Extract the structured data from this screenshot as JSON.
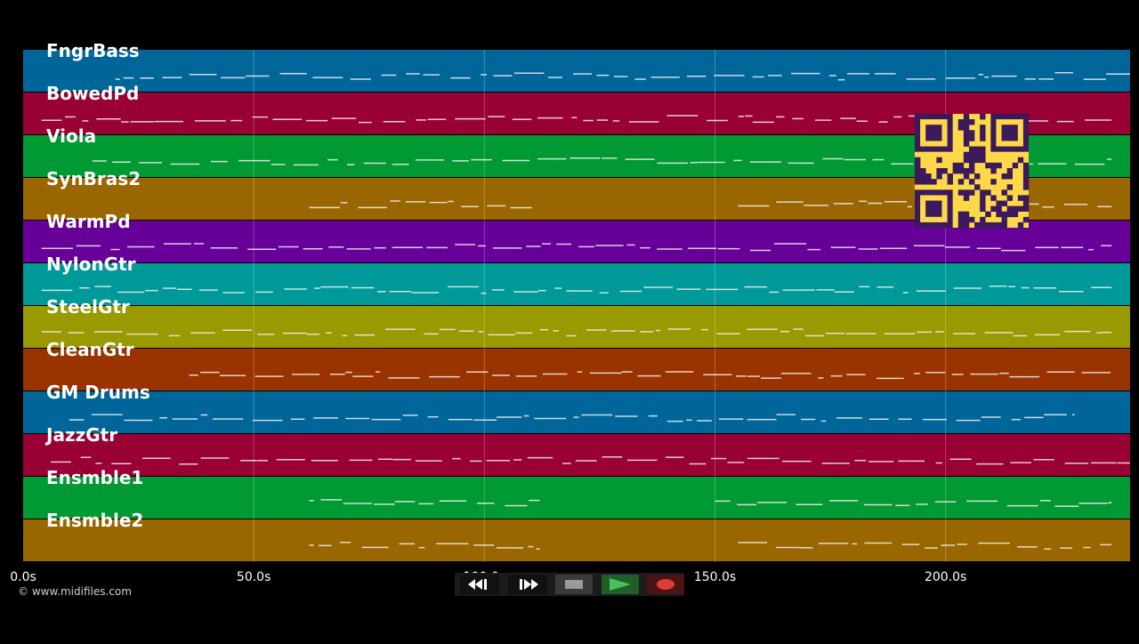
{
  "timeline": {
    "tracks": [
      {
        "name": "FngrBass",
        "color": "#006699"
      },
      {
        "name": "BowedPd",
        "color": "#990033"
      },
      {
        "name": "Viola",
        "color": "#009933"
      },
      {
        "name": "SynBras2",
        "color": "#996600"
      },
      {
        "name": "WarmPd",
        "color": "#660099"
      },
      {
        "name": "NylonGtr",
        "color": "#009999"
      },
      {
        "name": "SteelGtr",
        "color": "#999900"
      },
      {
        "name": "CleanGtr",
        "color": "#993300"
      },
      {
        "name": "GM Drums",
        "color": "#006699"
      },
      {
        "name": "JazzGtr",
        "color": "#990033"
      },
      {
        "name": "Ensmble1",
        "color": "#009933"
      },
      {
        "name": "Ensmble2",
        "color": "#996600"
      }
    ],
    "time_axis": {
      "unit": "s",
      "range": [
        0,
        240
      ],
      "ticks": [
        {
          "value": 0,
          "label": "0.0s"
        },
        {
          "value": 50,
          "label": "50.0s"
        },
        {
          "value": 100,
          "label": "100.0s"
        },
        {
          "value": 150,
          "label": "150.0s"
        },
        {
          "value": 200,
          "label": "200.0s"
        }
      ]
    }
  },
  "footer": {
    "copyright": "© www.midifiles.com"
  },
  "transport": {
    "buttons": [
      {
        "name": "rewind",
        "icon": "rewind-icon"
      },
      {
        "name": "fast-forward",
        "icon": "fast-forward-icon"
      },
      {
        "name": "stop",
        "icon": "stop-icon"
      },
      {
        "name": "play",
        "icon": "play-icon"
      },
      {
        "name": "record",
        "icon": "record-icon"
      }
    ]
  },
  "overlay": {
    "qr_code": "qr-code-icon"
  }
}
